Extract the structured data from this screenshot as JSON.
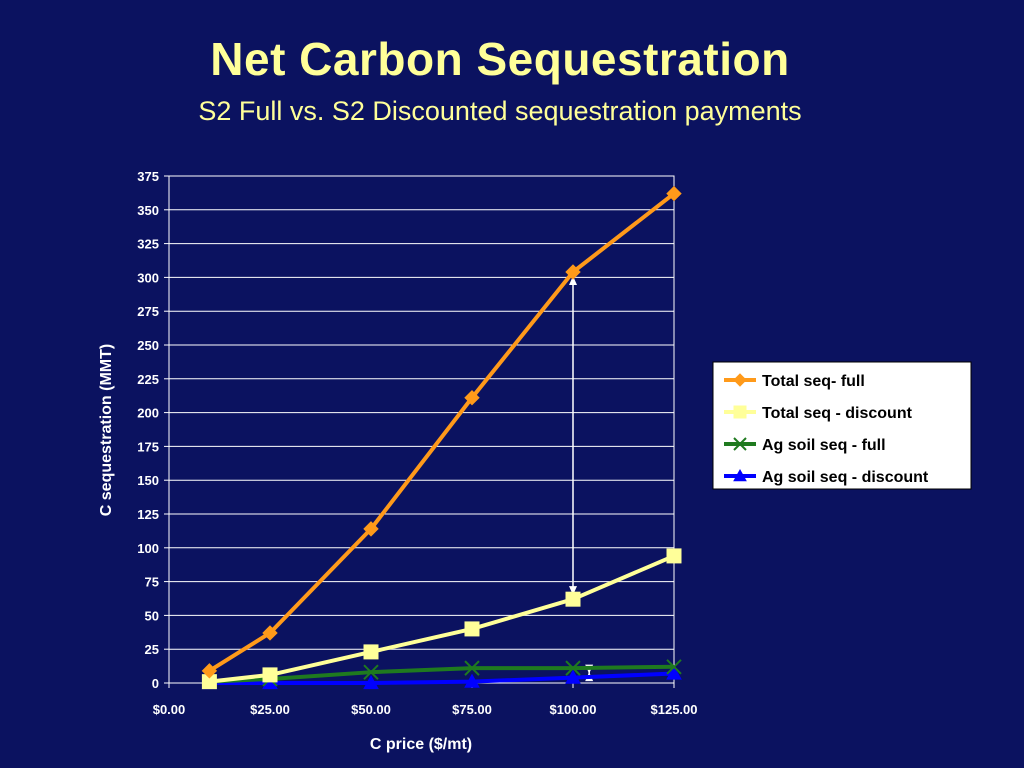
{
  "slide": {
    "title": "Net Carbon Sequestration",
    "subtitle": "S2 Full vs. S2 Discounted sequestration payments"
  },
  "chart_data": {
    "type": "line",
    "xlabel": "C price ($/mt)",
    "ylabel": "C sequestration (MMT)",
    "xlim": [
      0,
      125
    ],
    "ylim": [
      0,
      375
    ],
    "x_ticks": [
      "$0.00",
      "$25.00",
      "$50.00",
      "$75.00",
      "$100.00",
      "$125.00"
    ],
    "y_ticks": [
      "0",
      "25",
      "50",
      "75",
      "100",
      "125",
      "150",
      "175",
      "200",
      "225",
      "250",
      "275",
      "300",
      "325",
      "350",
      "375"
    ],
    "grid": "horizontal",
    "legend_position": "right",
    "series": [
      {
        "name": "Total seq- full",
        "color": "#ff9a1a",
        "marker": "diamond",
        "x": [
          10,
          25,
          50,
          75,
          100,
          125
        ],
        "y": [
          9,
          37,
          114,
          211,
          304,
          362
        ]
      },
      {
        "name": "Total seq - discount",
        "color": "#ffff99",
        "marker": "square",
        "x": [
          10,
          25,
          50,
          75,
          100,
          125
        ],
        "y": [
          1,
          6,
          23,
          40,
          62,
          94
        ]
      },
      {
        "name": "Ag soil seq - full",
        "color": "#1f7a1f",
        "marker": "x",
        "x": [
          10,
          25,
          50,
          75,
          100,
          125
        ],
        "y": [
          1,
          3,
          8,
          11,
          11,
          12
        ]
      },
      {
        "name": "Ag soil seq - discount",
        "color": "#0000ff",
        "marker": "triangle",
        "x": [
          10,
          25,
          50,
          75,
          100,
          125
        ],
        "y": [
          0,
          0,
          0,
          1,
          4,
          7
        ]
      }
    ],
    "annotations": [
      {
        "type": "double-arrow",
        "x": 100,
        "y_from": 62,
        "y_to": 304,
        "color": "#ffffff"
      },
      {
        "type": "double-arrow",
        "x": 104,
        "y_from": 4,
        "y_to": 11,
        "color": "#ffffff"
      }
    ]
  }
}
